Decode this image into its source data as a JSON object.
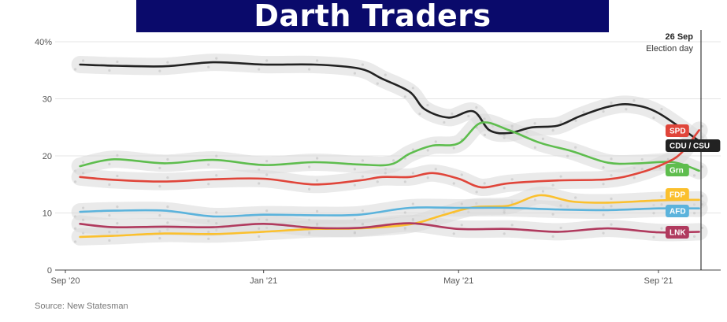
{
  "banner": {
    "title": "Darth Traders"
  },
  "source": "Source: New Statesman",
  "chart_data": {
    "type": "line",
    "x_ticks": [
      "Sep '20",
      "Jan '21",
      "May '21",
      "Sep '21"
    ],
    "y_ticks": [
      "0",
      "10",
      "20",
      "30",
      "40%"
    ],
    "ylim": [
      0,
      40
    ],
    "xlim": [
      "2020-09-01",
      "2021-10-08"
    ],
    "grid": true,
    "annotation": {
      "date_label": "26 Sep",
      "text": "Election day",
      "x": "2021-09-26"
    },
    "series": [
      {
        "name": "CDU / CSU",
        "color": "#222222",
        "badge_text": "#ffffff",
        "x": [
          "2020-09-10",
          "2020-10-01",
          "2020-11-01",
          "2020-12-01",
          "2021-01-01",
          "2021-02-01",
          "2021-03-01",
          "2021-03-15",
          "2021-04-01",
          "2021-04-10",
          "2021-04-25",
          "2021-05-10",
          "2021-05-20",
          "2021-06-01",
          "2021-06-15",
          "2021-07-01",
          "2021-07-15",
          "2021-08-01",
          "2021-08-15",
          "2021-09-01",
          "2021-09-26"
        ],
        "values": [
          36,
          35.8,
          35.7,
          36.4,
          36,
          36,
          35.3,
          33.5,
          31.2,
          28.2,
          26.7,
          27.8,
          24.5,
          24,
          25,
          25.3,
          27,
          28.6,
          29,
          27.5,
          22.6
        ]
      },
      {
        "name": "Grn",
        "color": "#5ebd4e",
        "badge_text": "#ffffff",
        "x": [
          "2020-09-10",
          "2020-10-01",
          "2020-11-01",
          "2020-12-01",
          "2021-01-01",
          "2021-02-01",
          "2021-03-01",
          "2021-03-20",
          "2021-04-01",
          "2021-04-15",
          "2021-05-01",
          "2021-05-15",
          "2021-06-01",
          "2021-06-20",
          "2021-07-10",
          "2021-08-01",
          "2021-08-20",
          "2021-09-10",
          "2021-09-26"
        ],
        "values": [
          18.2,
          19.4,
          18.7,
          19.3,
          18.4,
          18.9,
          18.5,
          18.5,
          20.4,
          21.8,
          22.2,
          25.8,
          24.5,
          22.3,
          20.8,
          18.8,
          18.7,
          18.9,
          17.4
        ]
      },
      {
        "name": "SPD",
        "color": "#e0453a",
        "badge_text": "#ffffff",
        "x": [
          "2020-09-10",
          "2020-10-01",
          "2020-11-01",
          "2020-12-01",
          "2021-01-01",
          "2021-02-01",
          "2021-03-01",
          "2021-03-15",
          "2021-04-01",
          "2021-04-15",
          "2021-05-01",
          "2021-05-15",
          "2021-06-01",
          "2021-07-01",
          "2021-08-01",
          "2021-08-20",
          "2021-09-05",
          "2021-09-15",
          "2021-09-26"
        ],
        "values": [
          16.3,
          15.8,
          15.5,
          15.9,
          16,
          15,
          15.7,
          16.3,
          16.3,
          17,
          16,
          14.5,
          15.2,
          15.7,
          15.9,
          17,
          18.7,
          20.5,
          24.5
        ]
      },
      {
        "name": "FDP",
        "color": "#fbc02d",
        "badge_text": "#ffffff",
        "x": [
          "2020-09-10",
          "2020-10-01",
          "2020-11-01",
          "2020-12-01",
          "2021-01-01",
          "2021-02-01",
          "2021-03-01",
          "2021-04-01",
          "2021-04-20",
          "2021-05-10",
          "2021-06-01",
          "2021-06-20",
          "2021-07-10",
          "2021-08-01",
          "2021-09-01",
          "2021-09-26"
        ],
        "values": [
          5.8,
          6,
          6.4,
          6.3,
          6.7,
          7.2,
          7.3,
          8,
          9.5,
          11,
          11.3,
          13.1,
          12,
          11.8,
          12.2,
          12.3
        ]
      },
      {
        "name": "AFD",
        "color": "#5bb3dc",
        "badge_text": "#ffffff",
        "x": [
          "2020-09-10",
          "2020-10-01",
          "2020-11-01",
          "2020-12-01",
          "2021-01-01",
          "2021-02-01",
          "2021-03-01",
          "2021-04-01",
          "2021-05-01",
          "2021-06-01",
          "2021-07-01",
          "2021-08-01",
          "2021-09-01",
          "2021-09-26"
        ],
        "values": [
          10.2,
          10.4,
          10.4,
          9.4,
          9.7,
          9.6,
          9.7,
          10.9,
          10.9,
          10.9,
          10.6,
          10.5,
          10.8,
          10.8
        ]
      },
      {
        "name": "LNK",
        "color": "#b03a5e",
        "badge_text": "#ffffff",
        "x": [
          "2020-09-10",
          "2020-10-01",
          "2020-11-01",
          "2020-12-01",
          "2021-01-01",
          "2021-02-01",
          "2021-03-01",
          "2021-04-01",
          "2021-05-01",
          "2021-06-01",
          "2021-07-01",
          "2021-08-01",
          "2021-09-01",
          "2021-09-26"
        ],
        "values": [
          8.1,
          7.5,
          7.6,
          7.5,
          8.1,
          7.4,
          7.4,
          8.2,
          7.2,
          7.2,
          6.7,
          7.3,
          6.6,
          6.7
        ]
      }
    ]
  }
}
